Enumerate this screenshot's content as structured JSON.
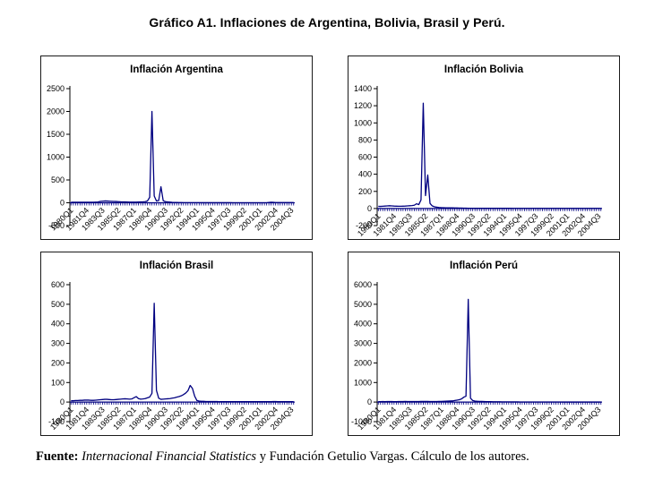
{
  "page_title": "Gráfico A1. Inflaciones de Argentina, Bolivia, Brasil y Perú.",
  "footer": {
    "label": "Fuente: ",
    "source_italic": "Internacional Financial Statistics",
    "source_rest": " y Fundación Getulio Vargas. Cálculo de los autores."
  },
  "colors": {
    "line": "#000080",
    "axis": "#000000",
    "panel_border": "#1a1a1a",
    "background": "#ffffff"
  },
  "chart_data": [
    {
      "type": "line",
      "title": "Inflación Argentina",
      "ylim": [
        -500,
        2500
      ],
      "yticks": [
        2500,
        2000,
        1500,
        1000,
        500,
        0,
        -500
      ],
      "x_start": "1980Q1",
      "x_end": "2004Q4",
      "frequency": "quarterly",
      "label_every": 7,
      "x_labels": [
        "1980Q1",
        "1981Q4",
        "1983Q3",
        "1985Q2",
        "1987Q1",
        "1988Q4",
        "1990Q3",
        "1992Q2",
        "1994Q1",
        "1995Q4",
        "1997Q3",
        "1999Q2",
        "2001Q1",
        "2002Q4",
        "2004Q3"
      ],
      "grid": false,
      "legend": false,
      "series": [
        {
          "name": "Inflación Argentina",
          "values": [
            12,
            11,
            12,
            13,
            12,
            11,
            12,
            13,
            12,
            11,
            12,
            14,
            16,
            30,
            35,
            40,
            38,
            35,
            32,
            30,
            28,
            25,
            22,
            20,
            18,
            16,
            15,
            14,
            14,
            15,
            16,
            18,
            20,
            24,
            40,
            120,
            2000,
            150,
            40,
            50,
            350,
            45,
            25,
            18,
            14,
            10,
            8,
            6,
            5,
            4,
            3,
            3,
            2,
            2,
            2,
            2,
            2,
            2,
            1,
            1,
            1,
            1,
            1,
            1,
            1,
            1,
            1,
            1,
            1,
            1,
            1,
            1,
            0,
            0,
            0,
            0,
            0,
            0,
            0,
            0,
            0,
            0,
            0,
            0,
            0,
            0,
            0,
            0,
            8,
            12,
            9,
            5,
            4,
            4,
            4,
            4,
            4,
            4,
            4,
            4
          ]
        }
      ]
    },
    {
      "type": "line",
      "title": "Inflación Bolivia",
      "ylim": [
        -200,
        1400
      ],
      "yticks": [
        1400,
        1200,
        1000,
        800,
        600,
        400,
        200,
        0,
        -200
      ],
      "x_start": "1980Q1",
      "x_end": "2004Q4",
      "frequency": "quarterly",
      "label_every": 7,
      "x_labels": [
        "1980Q1",
        "1981Q4",
        "1983Q3",
        "1985Q2",
        "1987Q1",
        "1988Q4",
        "1990Q3",
        "1992Q2",
        "1994Q1",
        "1995Q4",
        "1997Q3",
        "1999Q2",
        "2001Q1",
        "2002Q4",
        "2004Q3"
      ],
      "grid": false,
      "legend": false,
      "series": [
        {
          "name": "Inflación Bolivia",
          "values": [
            25,
            24,
            26,
            28,
            30,
            32,
            30,
            28,
            27,
            26,
            26,
            27,
            28,
            30,
            32,
            34,
            38,
            55,
            45,
            100,
            1230,
            150,
            390,
            60,
            30,
            20,
            15,
            12,
            10,
            9,
            8,
            8,
            7,
            7,
            6,
            6,
            5,
            5,
            4,
            4,
            3,
            3,
            3,
            3,
            2,
            2,
            2,
            2,
            2,
            2,
            2,
            2,
            2,
            2,
            2,
            2,
            2,
            2,
            2,
            2,
            1,
            1,
            1,
            1,
            1,
            1,
            1,
            1,
            1,
            1,
            1,
            1,
            1,
            1,
            1,
            1,
            1,
            1,
            1,
            1,
            1,
            1,
            1,
            1,
            1,
            1,
            1,
            1,
            1,
            1,
            1,
            1,
            1,
            1,
            1,
            1,
            1,
            1,
            1,
            1
          ]
        }
      ]
    },
    {
      "type": "line",
      "title": "Inflación Brasil",
      "ylim": [
        -100,
        600
      ],
      "yticks": [
        600,
        500,
        400,
        300,
        200,
        100,
        0,
        -100
      ],
      "x_start": "1980Q1",
      "x_end": "2004Q4",
      "frequency": "quarterly",
      "label_every": 7,
      "x_labels": [
        "1980Q1",
        "1981Q4",
        "1983Q3",
        "1985Q2",
        "1987Q1",
        "1988Q4",
        "1990Q3",
        "1992Q2",
        "1994Q1",
        "1995Q4",
        "1997Q3",
        "1999Q2",
        "2001Q1",
        "2002Q4",
        "2004Q3"
      ],
      "grid": false,
      "legend": false,
      "series": [
        {
          "name": "Inflación Brasil",
          "values": [
            7,
            7,
            8,
            8,
            9,
            9,
            10,
            10,
            10,
            9,
            9,
            10,
            11,
            12,
            13,
            14,
            14,
            13,
            12,
            12,
            13,
            14,
            15,
            16,
            17,
            16,
            15,
            16,
            22,
            28,
            18,
            15,
            16,
            18,
            22,
            26,
            45,
            505,
            60,
            20,
            14,
            15,
            16,
            17,
            18,
            20,
            22,
            25,
            28,
            32,
            38,
            46,
            58,
            85,
            70,
            30,
            8,
            5,
            4,
            4,
            3,
            3,
            3,
            3,
            3,
            3,
            2,
            2,
            2,
            2,
            2,
            2,
            2,
            2,
            2,
            2,
            2,
            2,
            2,
            2,
            2,
            2,
            2,
            2,
            2,
            2,
            2,
            2,
            2,
            2,
            3,
            3,
            2,
            2,
            2,
            2,
            2,
            2,
            2,
            2
          ]
        }
      ]
    },
    {
      "type": "line",
      "title": "Inflación Perú",
      "ylim": [
        -1000,
        6000
      ],
      "yticks": [
        6000,
        5000,
        4000,
        3000,
        2000,
        1000,
        0,
        -1000
      ],
      "x_start": "1980Q1",
      "x_end": "2004Q4",
      "frequency": "quarterly",
      "label_every": 7,
      "x_labels": [
        "1980Q1",
        "1981Q4",
        "1983Q3",
        "1985Q2",
        "1987Q1",
        "1988Q4",
        "1990Q3",
        "1992Q2",
        "1994Q1",
        "1995Q4",
        "1997Q3",
        "1999Q2",
        "2001Q1",
        "2002Q4",
        "2004Q3"
      ],
      "grid": false,
      "legend": false,
      "series": [
        {
          "name": "Inflación Perú",
          "values": [
            25,
            24,
            26,
            25,
            27,
            28,
            26,
            25,
            24,
            26,
            28,
            30,
            32,
            30,
            28,
            27,
            26,
            28,
            30,
            33,
            35,
            34,
            32,
            30,
            29,
            28,
            30,
            32,
            35,
            40,
            45,
            50,
            55,
            60,
            80,
            100,
            120,
            160,
            250,
            300,
            5250,
            200,
            80,
            50,
            42,
            36,
            32,
            28,
            25,
            22,
            20,
            18,
            17,
            16,
            15,
            14,
            13,
            12,
            11,
            10,
            10,
            9,
            9,
            8,
            8,
            8,
            8,
            7,
            7,
            7,
            7,
            6,
            6,
            6,
            6,
            6,
            5,
            5,
            5,
            5,
            5,
            5,
            4,
            4,
            4,
            4,
            4,
            4,
            4,
            4,
            3,
            3,
            3,
            3,
            3,
            3,
            3,
            3,
            3,
            3
          ]
        }
      ]
    }
  ]
}
